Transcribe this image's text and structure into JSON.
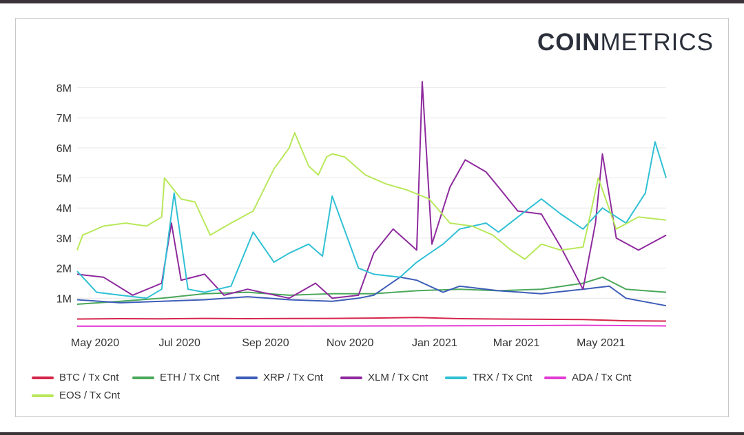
{
  "brand": {
    "bold": "COIN",
    "light": "METRICS"
  },
  "colors": {
    "BTC": "#d6254a",
    "ETH": "#4aa85a",
    "XRP": "#3d5db8",
    "XLM": "#8e2a9e",
    "TRX": "#2fc0d4",
    "ADA": "#e23bd4",
    "EOS": "#b8e85a"
  },
  "chart_data": {
    "type": "line",
    "xlabel": "",
    "ylabel": "",
    "title": "",
    "x_range": [
      "2020-05-01",
      "2021-06-30"
    ],
    "x_ticks": [
      {
        "date": "2020-05-01",
        "label": "May 2020"
      },
      {
        "date": "2020-07-01",
        "label": "Jul 2020"
      },
      {
        "date": "2020-09-01",
        "label": "Sep 2020"
      },
      {
        "date": "2020-11-01",
        "label": "Nov 2020"
      },
      {
        "date": "2021-01-01",
        "label": "Jan 2021"
      },
      {
        "date": "2021-03-01",
        "label": "Mar 2021"
      },
      {
        "date": "2021-05-01",
        "label": "May 2021"
      }
    ],
    "ylim": [
      0,
      8400000
    ],
    "y_ticks": [
      {
        "value": 1000000,
        "label": "1M"
      },
      {
        "value": 2000000,
        "label": "2M"
      },
      {
        "value": 3000000,
        "label": "3M"
      },
      {
        "value": 4000000,
        "label": "4M"
      },
      {
        "value": 5000000,
        "label": "5M"
      },
      {
        "value": 6000000,
        "label": "6M"
      },
      {
        "value": 7000000,
        "label": "7M"
      },
      {
        "value": 8000000,
        "label": "8M"
      }
    ],
    "grid": true,
    "legend_position": "bottom",
    "series": [
      {
        "name": "BTC / Tx Cnt",
        "key": "BTC",
        "x": [
          "2020-05-01",
          "2020-06-01",
          "2020-07-01",
          "2020-08-01",
          "2020-09-01",
          "2020-10-01",
          "2020-11-01",
          "2020-12-01",
          "2021-01-01",
          "2021-02-01",
          "2021-03-01",
          "2021-04-01",
          "2021-05-01",
          "2021-06-01",
          "2021-06-30"
        ],
        "y": [
          310000,
          320000,
          315000,
          330000,
          320000,
          325000,
          330000,
          340000,
          360000,
          320000,
          310000,
          300000,
          290000,
          250000,
          240000
        ]
      },
      {
        "name": "ETH / Tx Cnt",
        "key": "ETH",
        "x": [
          "2020-05-01",
          "2020-06-01",
          "2020-07-01",
          "2020-08-01",
          "2020-09-01",
          "2020-10-01",
          "2020-11-01",
          "2020-12-01",
          "2021-01-01",
          "2021-02-01",
          "2021-03-01",
          "2021-04-01",
          "2021-05-01",
          "2021-05-15",
          "2021-06-01",
          "2021-06-30"
        ],
        "y": [
          800000,
          900000,
          1000000,
          1150000,
          1200000,
          1100000,
          1150000,
          1150000,
          1250000,
          1300000,
          1250000,
          1300000,
          1500000,
          1700000,
          1300000,
          1200000
        ]
      },
      {
        "name": "XRP / Tx Cnt",
        "key": "XRP",
        "x": [
          "2020-05-01",
          "2020-06-01",
          "2020-07-01",
          "2020-08-01",
          "2020-09-01",
          "2020-10-01",
          "2020-11-01",
          "2020-11-20",
          "2020-12-01",
          "2020-12-20",
          "2021-01-01",
          "2021-01-20",
          "2021-02-01",
          "2021-03-01",
          "2021-04-01",
          "2021-05-01",
          "2021-05-20",
          "2021-06-01",
          "2021-06-30"
        ],
        "y": [
          950000,
          850000,
          900000,
          950000,
          1050000,
          950000,
          900000,
          1000000,
          1100000,
          1700000,
          1600000,
          1200000,
          1400000,
          1250000,
          1150000,
          1300000,
          1400000,
          1000000,
          750000
        ]
      },
      {
        "name": "XLM / Tx Cnt",
        "key": "XLM",
        "x": [
          "2020-05-01",
          "2020-05-20",
          "2020-06-10",
          "2020-07-01",
          "2020-07-08",
          "2020-07-15",
          "2020-08-01",
          "2020-08-15",
          "2020-09-01",
          "2020-10-01",
          "2020-10-20",
          "2020-11-01",
          "2020-11-20",
          "2020-12-01",
          "2020-12-15",
          "2021-01-01",
          "2021-01-05",
          "2021-01-12",
          "2021-01-25",
          "2021-02-05",
          "2021-02-20",
          "2021-03-01",
          "2021-03-15",
          "2021-04-01",
          "2021-04-15",
          "2021-05-01",
          "2021-05-10",
          "2021-05-15",
          "2021-05-25",
          "2021-06-10",
          "2021-06-30"
        ],
        "y": [
          1800000,
          1700000,
          1100000,
          1500000,
          3500000,
          1600000,
          1800000,
          1100000,
          1300000,
          1000000,
          1500000,
          1000000,
          1100000,
          2500000,
          3300000,
          2600000,
          8200000,
          2800000,
          4700000,
          5600000,
          5200000,
          4700000,
          3900000,
          3800000,
          2700000,
          1300000,
          3500000,
          5800000,
          3000000,
          2600000,
          3100000
        ]
      },
      {
        "name": "TRX / Tx Cnt",
        "key": "TRX",
        "x": [
          "2020-05-01",
          "2020-05-15",
          "2020-06-01",
          "2020-06-20",
          "2020-07-01",
          "2020-07-10",
          "2020-07-20",
          "2020-08-01",
          "2020-08-20",
          "2020-09-05",
          "2020-09-20",
          "2020-10-01",
          "2020-10-15",
          "2020-10-25",
          "2020-11-01",
          "2020-11-20",
          "2020-12-01",
          "2020-12-20",
          "2021-01-01",
          "2021-01-20",
          "2021-02-01",
          "2021-02-20",
          "2021-03-01",
          "2021-03-15",
          "2021-04-01",
          "2021-04-15",
          "2021-05-01",
          "2021-05-15",
          "2021-06-01",
          "2021-06-15",
          "2021-06-22",
          "2021-06-30"
        ],
        "y": [
          1900000,
          1200000,
          1100000,
          1000000,
          1300000,
          4500000,
          1300000,
          1200000,
          1400000,
          3200000,
          2200000,
          2500000,
          2800000,
          2400000,
          4400000,
          2000000,
          1800000,
          1700000,
          2200000,
          2800000,
          3300000,
          3500000,
          3200000,
          3700000,
          4300000,
          3800000,
          3300000,
          4000000,
          3500000,
          4500000,
          6200000,
          5000000
        ]
      },
      {
        "name": "ADA / Tx Cnt",
        "key": "ADA",
        "x": [
          "2020-05-01",
          "2020-09-01",
          "2021-01-01",
          "2021-03-01",
          "2021-05-01",
          "2021-06-30"
        ],
        "y": [
          70000,
          70000,
          80000,
          90000,
          100000,
          80000
        ]
      },
      {
        "name": "EOS / Tx Cnt",
        "key": "EOS",
        "x": [
          "2020-05-01",
          "2020-05-05",
          "2020-05-20",
          "2020-06-05",
          "2020-06-20",
          "2020-07-01",
          "2020-07-03",
          "2020-07-15",
          "2020-07-25",
          "2020-08-05",
          "2020-08-20",
          "2020-09-05",
          "2020-09-20",
          "2020-10-01",
          "2020-10-05",
          "2020-10-15",
          "2020-10-22",
          "2020-10-28",
          "2020-11-01",
          "2020-11-10",
          "2020-11-25",
          "2020-12-10",
          "2020-12-25",
          "2021-01-10",
          "2021-01-25",
          "2021-02-10",
          "2021-02-25",
          "2021-03-10",
          "2021-03-20",
          "2021-04-01",
          "2021-04-15",
          "2021-05-01",
          "2021-05-05",
          "2021-05-12",
          "2021-05-25",
          "2021-06-10",
          "2021-06-30"
        ],
        "y": [
          2600000,
          3100000,
          3400000,
          3500000,
          3400000,
          3700000,
          5000000,
          4300000,
          4200000,
          3100000,
          3500000,
          3900000,
          5300000,
          6000000,
          6500000,
          5400000,
          5100000,
          5700000,
          5800000,
          5700000,
          5100000,
          4800000,
          4600000,
          4300000,
          3500000,
          3400000,
          3100000,
          2600000,
          2300000,
          2800000,
          2600000,
          2700000,
          3500000,
          5000000,
          3300000,
          3700000,
          3600000
        ]
      }
    ]
  }
}
